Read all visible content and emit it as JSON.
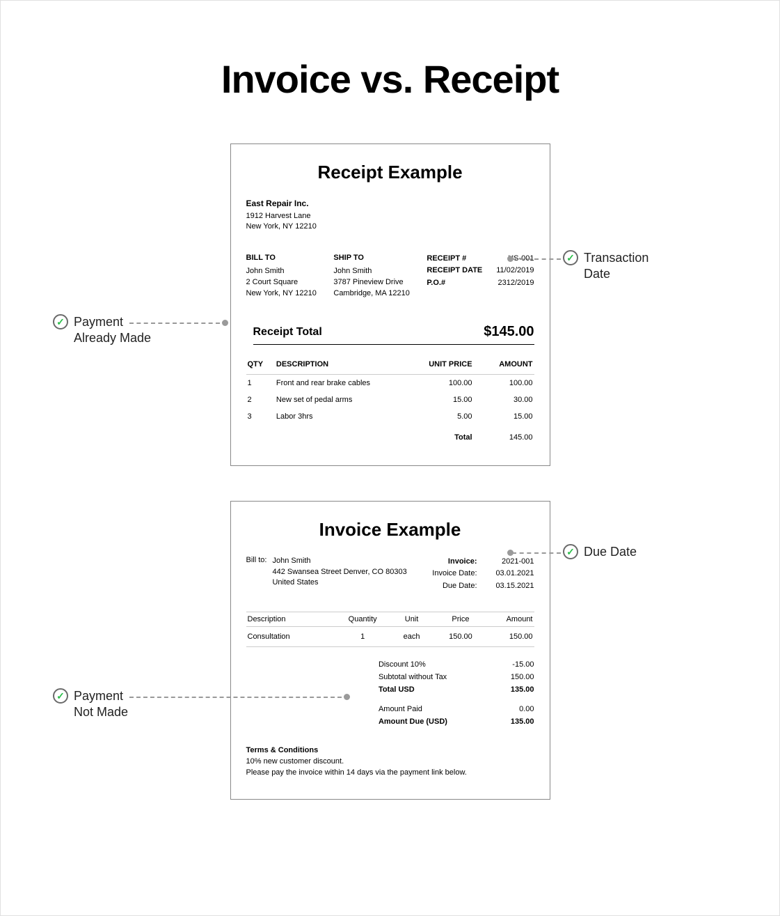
{
  "title": "Invoice vs. Receipt",
  "receipt": {
    "title": "Receipt Example",
    "company": {
      "name": "East Repair Inc.",
      "addr1": "1912 Harvest Lane",
      "addr2": "New York, NY 12210"
    },
    "billto": {
      "hdr": "BILL TO",
      "name": "John Smith",
      "addr1": "2 Court Square",
      "addr2": "New York, NY 12210"
    },
    "shipto": {
      "hdr": "SHIP TO",
      "name": "John Smith",
      "addr1": "3787 Pineview Drive",
      "addr2": "Cambridge, MA 12210"
    },
    "meta": {
      "k1": "RECEIPT #",
      "v1": "US-001",
      "k2": "RECEIPT DATE",
      "v2": "11/02/2019",
      "k3": "P.O.#",
      "v3": "2312/2019"
    },
    "total_label": "Receipt Total",
    "total_amount": "$145.00",
    "cols": {
      "qty": "QTY",
      "desc": "DESCRIPTION",
      "unit": "UNIT PRICE",
      "amt": "AMOUNT"
    },
    "rows": [
      {
        "qty": "1",
        "desc": "Front and rear brake cables",
        "unit": "100.00",
        "amt": "100.00"
      },
      {
        "qty": "2",
        "desc": "New set of pedal arms",
        "unit": "15.00",
        "amt": "30.00"
      },
      {
        "qty": "3",
        "desc": "Labor 3hrs",
        "unit": "5.00",
        "amt": "15.00"
      }
    ],
    "foot_label": "Total",
    "foot_value": "145.00"
  },
  "invoice": {
    "title": "Invoice Example",
    "billto_label": "Bill to:",
    "billto_name": "John Smith",
    "billto_addr1": "442 Swansea Street Denver, CO 80303",
    "billto_addr2": "United States",
    "meta": {
      "k1": "Invoice:",
      "v1": "2021-001",
      "k2": "Invoice Date:",
      "v2": "03.01.2021",
      "k3": "Due Date:",
      "v3": "03.15.2021"
    },
    "cols": {
      "desc": "Description",
      "qty": "Quantity",
      "unit": "Unit",
      "price": "Price",
      "amt": "Amount"
    },
    "row": {
      "desc": "Consultation",
      "qty": "1",
      "unit": "each",
      "price": "150.00",
      "amt": "150.00"
    },
    "summary": {
      "discount_k": "Discount 10%",
      "discount_v": "-15.00",
      "subtotal_k": "Subtotal without Tax",
      "subtotal_v": "150.00",
      "total_k": "Total USD",
      "total_v": "135.00",
      "paid_k": "Amount Paid",
      "paid_v": "0.00",
      "due_k": "Amount Due (USD)",
      "due_v": "135.00"
    },
    "terms": {
      "title": "Terms & Conditions",
      "line1": "10% new customer discount.",
      "line2": "Please pay the invoice within 14 days via the payment link below."
    }
  },
  "annotations": {
    "payment_made": "Payment\nAlready Made",
    "transaction_date": "Transaction\nDate",
    "due_date": "Due Date",
    "payment_not_made": "Payment\nNot Made"
  },
  "colors": {
    "border": "#e0e0e0",
    "checkRing": "#6a6a6a",
    "checkMark": "#2bbf4a",
    "dash": "#999999",
    "dot": "#9a9a9a"
  }
}
